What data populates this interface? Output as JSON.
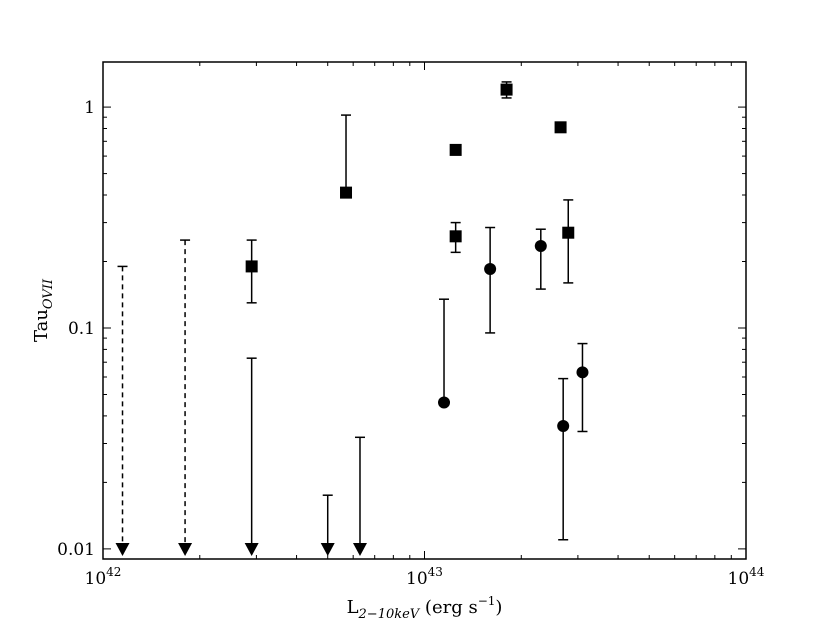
{
  "chart_data": {
    "type": "scatter",
    "x_scale": "log",
    "y_scale": "log",
    "xlim": [
      1e+42,
      1e+44
    ],
    "ylim": [
      0.009,
      1.6
    ],
    "grid": false,
    "legend": "none",
    "xlabel": {
      "main": "L",
      "sub": "2−10keV",
      "units_pre": " (erg s",
      "sup": "−1",
      "units_post": ")"
    },
    "ylabel": {
      "main": "Tau",
      "sub": "OVII"
    },
    "x_ticks": [
      {
        "value": 1e+42,
        "base": "10",
        "exp": "42"
      },
      {
        "value": 1e+43,
        "base": "10",
        "exp": "43"
      },
      {
        "value": 1e+44,
        "base": "10",
        "exp": "44"
      }
    ],
    "y_ticks": [
      {
        "value": 0.01,
        "label": "0.01"
      },
      {
        "value": 0.1,
        "label": "0.1"
      },
      {
        "value": 1,
        "label": "1"
      }
    ],
    "series": [
      {
        "marker": "square",
        "points": [
          {
            "x": 2.9e+42,
            "y": 0.19,
            "ylo": 0.13,
            "yhi": 0.25
          },
          {
            "x": 5.7e+42,
            "y": 0.41,
            "ylo": 0.41,
            "yhi": 0.92
          },
          {
            "x": 1.25e+43,
            "y": 0.64,
            "ylo": 0.64,
            "yhi": 0.64
          },
          {
            "x": 1.25e+43,
            "y": 0.26,
            "ylo": 0.22,
            "yhi": 0.3
          },
          {
            "x": 1.8e+43,
            "y": 1.2,
            "ylo": 1.1,
            "yhi": 1.3
          },
          {
            "x": 2.65e+43,
            "y": 0.81,
            "ylo": 0.77,
            "yhi": 0.85
          },
          {
            "x": 2.8e+43,
            "y": 0.27,
            "ylo": 0.16,
            "yhi": 0.38
          }
        ]
      },
      {
        "marker": "circle",
        "points": [
          {
            "x": 1.15e+43,
            "y": 0.046,
            "ylo": 0.046,
            "yhi": 0.135
          },
          {
            "x": 1.6e+43,
            "y": 0.185,
            "ylo": 0.095,
            "yhi": 0.285
          },
          {
            "x": 2.3e+43,
            "y": 0.235,
            "ylo": 0.15,
            "yhi": 0.28
          },
          {
            "x": 2.7e+43,
            "y": 0.036,
            "ylo": 0.011,
            "yhi": 0.059
          },
          {
            "x": 3.1e+43,
            "y": 0.063,
            "ylo": 0.034,
            "yhi": 0.085
          }
        ]
      }
    ],
    "upper_limits": [
      {
        "x": 1.15e+42,
        "y": 0.19,
        "style": "dashed"
      },
      {
        "x": 1.8e+42,
        "y": 0.25,
        "style": "dashed"
      },
      {
        "x": 2.9e+42,
        "y": 0.073,
        "style": "solid"
      },
      {
        "x": 5e+42,
        "y": 0.0175,
        "style": "solid"
      },
      {
        "x": 6.3e+42,
        "y": 0.032,
        "style": "solid"
      }
    ]
  }
}
